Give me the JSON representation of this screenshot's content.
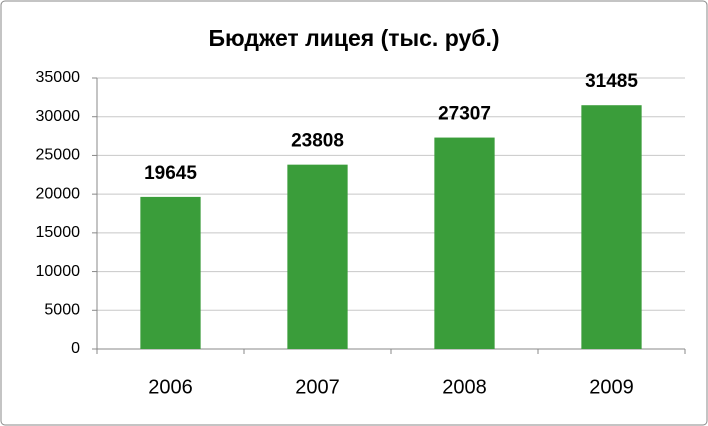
{
  "chart_data": {
    "type": "bar",
    "title": "Бюджет лицея (тыс. руб.)",
    "categories": [
      "2006",
      "2007",
      "2008",
      "2009"
    ],
    "values": [
      19645,
      23808,
      27307,
      31485
    ],
    "color": "#3a9d3a",
    "ylim": [
      0,
      35000
    ],
    "yticks": [
      0,
      5000,
      10000,
      15000,
      20000,
      25000,
      30000,
      35000
    ],
    "grid": true
  }
}
